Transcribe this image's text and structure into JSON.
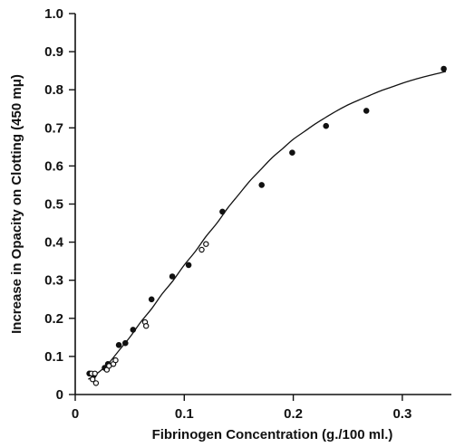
{
  "chart_data": {
    "type": "scatter",
    "xlabel": "Fibrinogen Concentration (g./100 ml.)",
    "ylabel": "Increase in Opacity on Clotting (450 mμ)",
    "xlim": [
      0,
      0.345
    ],
    "ylim": [
      0,
      1.0
    ],
    "x_ticks": [
      "0",
      "0.1",
      "0.2",
      "0.3"
    ],
    "x_tick_values": [
      0,
      0.1,
      0.2,
      0.3
    ],
    "y_ticks": [
      "0",
      "0.1",
      "0.2",
      "0.3",
      "0.4",
      "0.5",
      "0.6",
      "0.7",
      "0.8",
      "0.9",
      "1.0"
    ],
    "y_tick_values": [
      0,
      0.1,
      0.2,
      0.3,
      0.4,
      0.5,
      0.6,
      0.7,
      0.8,
      0.9,
      1.0
    ],
    "grid": false,
    "series": [
      {
        "marker": "filled",
        "x": [
          0.013,
          0.017,
          0.027,
          0.03,
          0.04,
          0.046,
          0.053,
          0.07,
          0.089,
          0.104,
          0.135,
          0.171,
          0.199,
          0.23,
          0.267,
          0.338
        ],
        "y": [
          0.055,
          0.05,
          0.07,
          0.08,
          0.13,
          0.135,
          0.17,
          0.25,
          0.31,
          0.34,
          0.48,
          0.55,
          0.635,
          0.705,
          0.745,
          0.855
        ]
      },
      {
        "marker": "open",
        "x": [
          0.015,
          0.016,
          0.018,
          0.019,
          0.029,
          0.031,
          0.035,
          0.037,
          0.064,
          0.065,
          0.116,
          0.12
        ],
        "y": [
          0.055,
          0.04,
          0.055,
          0.03,
          0.065,
          0.075,
          0.08,
          0.09,
          0.19,
          0.18,
          0.38,
          0.395
        ]
      }
    ],
    "fit_curve": {
      "x": [
        0.012,
        0.02,
        0.03,
        0.04,
        0.05,
        0.06,
        0.07,
        0.08,
        0.09,
        0.1,
        0.11,
        0.12,
        0.13,
        0.14,
        0.15,
        0.16,
        0.17,
        0.18,
        0.19,
        0.2,
        0.21,
        0.22,
        0.23,
        0.24,
        0.25,
        0.26,
        0.27,
        0.28,
        0.29,
        0.3,
        0.31,
        0.32,
        0.33,
        0.34
      ],
      "y": [
        0.04,
        0.055,
        0.08,
        0.115,
        0.15,
        0.19,
        0.225,
        0.265,
        0.3,
        0.34,
        0.375,
        0.415,
        0.45,
        0.49,
        0.525,
        0.56,
        0.59,
        0.62,
        0.645,
        0.67,
        0.69,
        0.71,
        0.728,
        0.745,
        0.76,
        0.773,
        0.785,
        0.797,
        0.807,
        0.817,
        0.826,
        0.834,
        0.841,
        0.848
      ]
    }
  }
}
